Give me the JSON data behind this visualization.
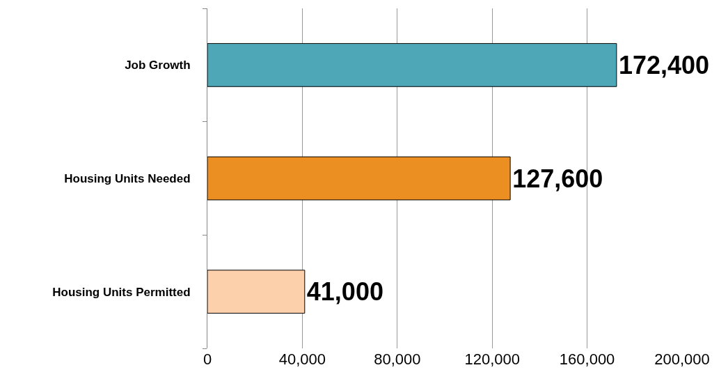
{
  "chart_data": {
    "type": "bar",
    "orientation": "horizontal",
    "categories": [
      "Job Growth",
      "Housing Units Needed",
      "Housing Units Permitted"
    ],
    "values": [
      172400,
      127600,
      41000
    ],
    "colors": [
      "#4ea7b7",
      "#ec8f22",
      "#fcd0aa"
    ],
    "value_labels": [
      "172,400",
      "127,600",
      "41,000"
    ],
    "xlim": [
      0,
      200000
    ],
    "xticks": [
      0,
      {
        "value": 40000,
        "label": "40,000"
      },
      {
        "value": 80000,
        "label": "80,000"
      },
      {
        "value": 120000,
        "label": "120,000"
      },
      {
        "value": 160000,
        "label": "160,000"
      },
      {
        "value": 200000,
        "label": "200,000"
      }
    ],
    "grid": "x"
  }
}
